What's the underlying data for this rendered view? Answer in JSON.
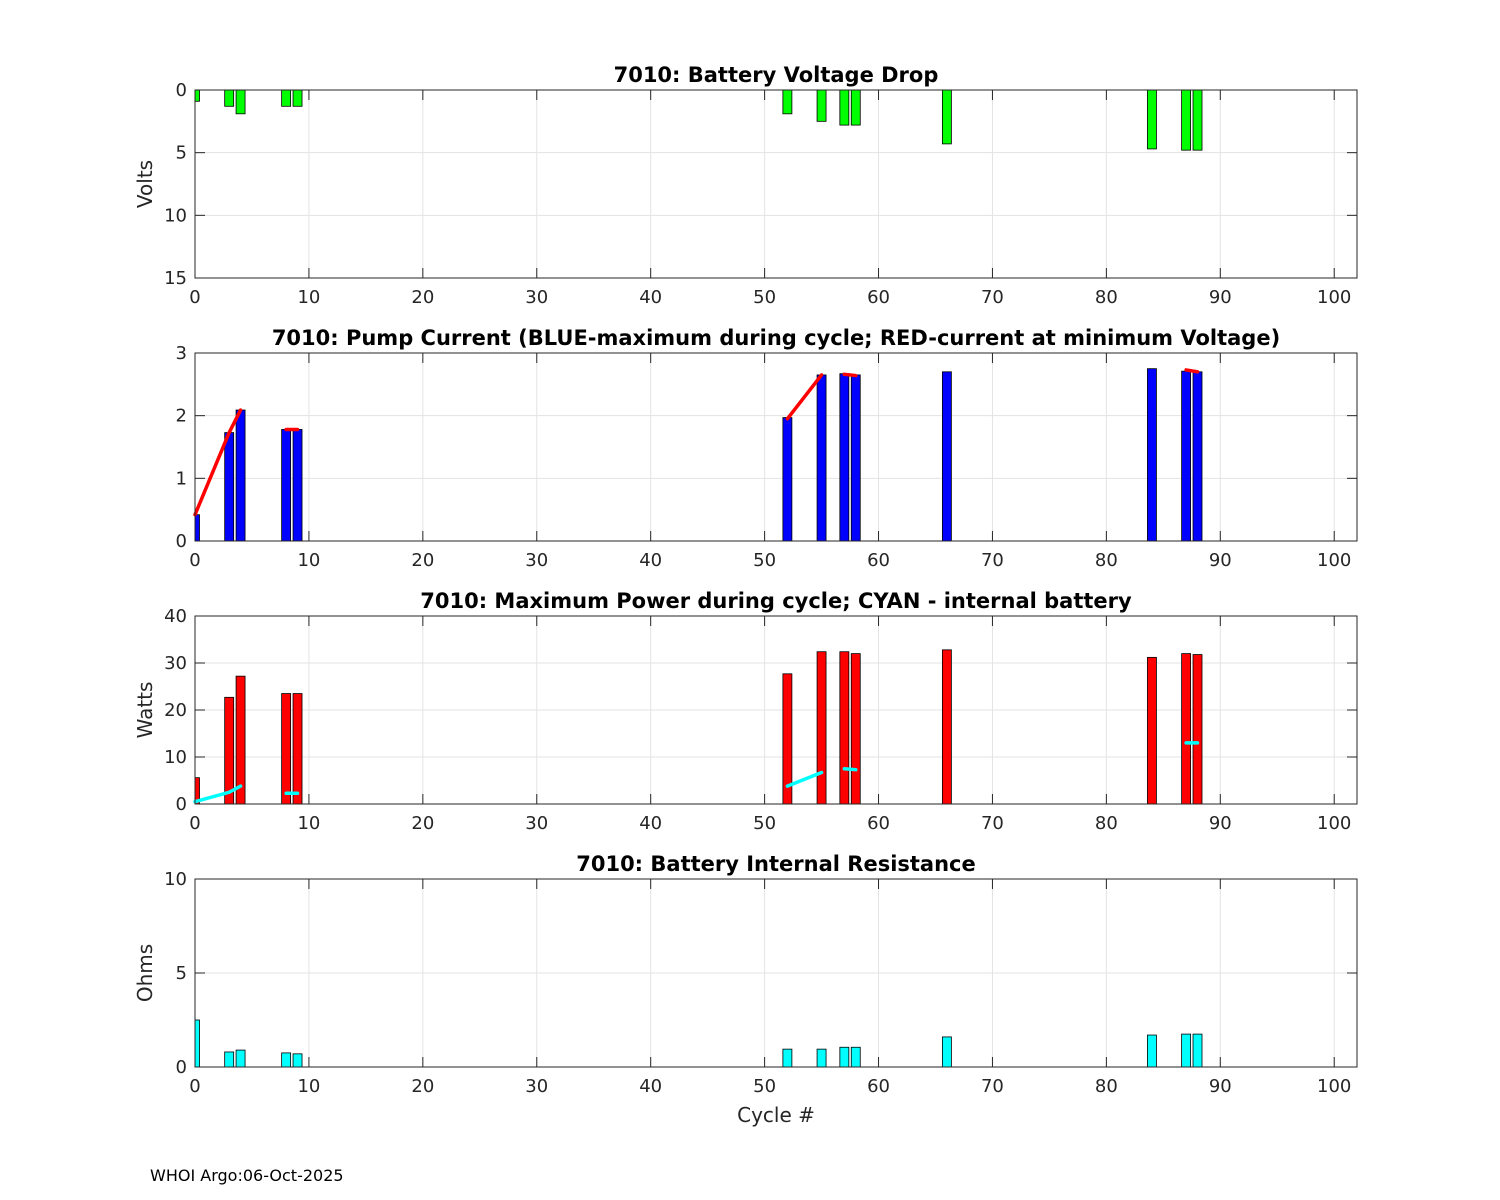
{
  "footer": "WHOI Argo:06-Oct-2025",
  "chart_data": [
    {
      "type": "bar",
      "title": "7010: Battery Voltage Drop",
      "ylabel": "Volts",
      "xlabel": "",
      "xlim": [
        0,
        102
      ],
      "ylim": [
        0,
        15
      ],
      "y_reversed": true,
      "xticks": [
        0,
        10,
        20,
        30,
        40,
        50,
        60,
        70,
        80,
        90,
        100
      ],
      "yticks": [
        0,
        5,
        10,
        15
      ],
      "grid": true,
      "bar_color": "#00ff00",
      "cycles": [
        0,
        3,
        4,
        8,
        9,
        52,
        55,
        57,
        58,
        66,
        84,
        87,
        88
      ],
      "values": [
        0.9,
        1.3,
        1.9,
        1.3,
        1.3,
        1.9,
        2.5,
        2.8,
        2.8,
        4.3,
        4.7,
        4.8,
        4.8
      ]
    },
    {
      "type": "bar",
      "title": "7010: Pump Current (BLUE-maximum during cycle; RED-current at minimum Voltage)",
      "ylabel": "",
      "xlabel": "",
      "xlim": [
        0,
        102
      ],
      "ylim": [
        0,
        3
      ],
      "xticks": [
        0,
        10,
        20,
        30,
        40,
        50,
        60,
        70,
        80,
        90,
        100
      ],
      "yticks": [
        0,
        1,
        2,
        3
      ],
      "grid": true,
      "bar_color": "#0000ff",
      "line_color": "#ff0000",
      "cycles": [
        0,
        3,
        4,
        8,
        9,
        52,
        55,
        57,
        58,
        66,
        84,
        87,
        88
      ],
      "values": [
        0.42,
        1.73,
        2.09,
        1.78,
        1.78,
        1.97,
        2.65,
        2.67,
        2.65,
        2.7,
        2.75,
        2.71,
        2.7
      ],
      "line_segments": [
        {
          "x": [
            0,
            3,
            4
          ],
          "y": [
            0.42,
            1.73,
            2.09
          ]
        },
        {
          "x": [
            8,
            9
          ],
          "y": [
            1.78,
            1.78
          ]
        },
        {
          "x": [
            52,
            55
          ],
          "y": [
            1.95,
            2.65
          ]
        },
        {
          "x": [
            57,
            58
          ],
          "y": [
            2.66,
            2.64
          ]
        },
        {
          "x": [
            87,
            88
          ],
          "y": [
            2.73,
            2.7
          ]
        }
      ]
    },
    {
      "type": "bar",
      "title": "7010: Maximum Power during cycle; CYAN - internal battery",
      "ylabel": "Watts",
      "xlabel": "",
      "xlim": [
        0,
        102
      ],
      "ylim": [
        0,
        40
      ],
      "xticks": [
        0,
        10,
        20,
        30,
        40,
        50,
        60,
        70,
        80,
        90,
        100
      ],
      "yticks": [
        0,
        10,
        20,
        30,
        40
      ],
      "grid": true,
      "bar_color": "#ff0000",
      "line_color": "#00ffff",
      "cycles": [
        0,
        3,
        4,
        8,
        9,
        52,
        55,
        57,
        58,
        66,
        84,
        87,
        88
      ],
      "values": [
        5.6,
        22.7,
        27.2,
        23.5,
        23.5,
        27.7,
        32.4,
        32.4,
        32.0,
        32.8,
        31.2,
        32.0,
        31.8
      ],
      "line_segments": [
        {
          "x": [
            0,
            3,
            4
          ],
          "y": [
            0.5,
            2.5,
            3.8
          ]
        },
        {
          "x": [
            8,
            9
          ],
          "y": [
            2.3,
            2.3
          ]
        },
        {
          "x": [
            52,
            55
          ],
          "y": [
            3.8,
            6.7
          ]
        },
        {
          "x": [
            57,
            58
          ],
          "y": [
            7.5,
            7.3
          ]
        },
        {
          "x": [
            87,
            88
          ],
          "y": [
            13.0,
            13.0
          ]
        }
      ]
    },
    {
      "type": "bar",
      "title": "7010: Battery Internal Resistance",
      "ylabel": "Ohms",
      "xlabel": "Cycle #",
      "xlim": [
        0,
        102
      ],
      "ylim": [
        0,
        10
      ],
      "xticks": [
        0,
        10,
        20,
        30,
        40,
        50,
        60,
        70,
        80,
        90,
        100
      ],
      "yticks": [
        0,
        5,
        10
      ],
      "grid": true,
      "bar_color": "#00ffff",
      "cycles": [
        0,
        3,
        4,
        8,
        9,
        52,
        55,
        57,
        58,
        66,
        84,
        87,
        88
      ],
      "values": [
        2.5,
        0.8,
        0.9,
        0.75,
        0.7,
        0.95,
        0.95,
        1.05,
        1.05,
        1.6,
        1.7,
        1.75,
        1.75
      ]
    }
  ]
}
